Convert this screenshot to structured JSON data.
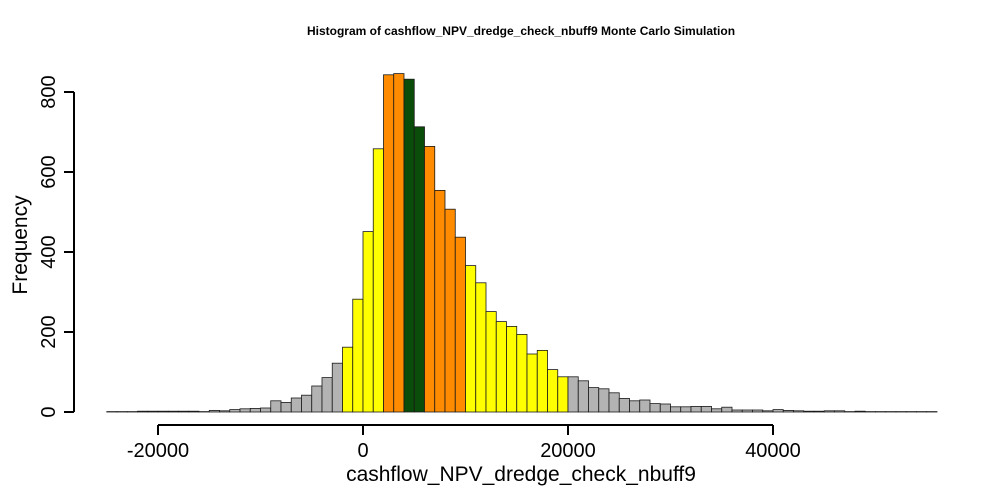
{
  "chart_data": {
    "type": "bar",
    "title": "Histogram of  cashflow_NPV_dredge_check_nbuff9  Monte Carlo Simulation",
    "xlabel": "cashflow_NPV_dredge_check_nbuff9",
    "ylabel": "Frequency",
    "xlim": [
      -25000,
      56000
    ],
    "ylim": [
      0,
      850
    ],
    "bin_width": 1000,
    "x_ticks": [
      -20000,
      0,
      20000,
      40000
    ],
    "x_tick_labels": [
      "-20000",
      "0",
      "20000",
      "40000"
    ],
    "y_ticks": [
      0,
      200,
      400,
      600,
      800
    ],
    "y_tick_labels": [
      "0",
      "200",
      "400",
      "600",
      "800"
    ],
    "grid": false,
    "legend": "none",
    "colors": {
      "outer": "#b3b3b3",
      "middle": "#ffff00",
      "inner": "#ff8c00",
      "core": "#0a4d0a",
      "stroke": "#1a1a1a"
    },
    "bins": [
      {
        "x0": -25000,
        "x1": -24000,
        "count": 1,
        "band": "outer"
      },
      {
        "x0": -24000,
        "x1": -23000,
        "count": 1,
        "band": "outer"
      },
      {
        "x0": -23000,
        "x1": -22000,
        "count": 1,
        "band": "outer"
      },
      {
        "x0": -22000,
        "x1": -21000,
        "count": 2,
        "band": "outer"
      },
      {
        "x0": -21000,
        "x1": -20000,
        "count": 2,
        "band": "outer"
      },
      {
        "x0": -20000,
        "x1": -19000,
        "count": 2,
        "band": "outer"
      },
      {
        "x0": -19000,
        "x1": -18000,
        "count": 2,
        "band": "outer"
      },
      {
        "x0": -18000,
        "x1": -17000,
        "count": 2,
        "band": "outer"
      },
      {
        "x0": -17000,
        "x1": -16000,
        "count": 2,
        "band": "outer"
      },
      {
        "x0": -16000,
        "x1": -15000,
        "count": 1,
        "band": "outer"
      },
      {
        "x0": -15000,
        "x1": -14000,
        "count": 4,
        "band": "outer"
      },
      {
        "x0": -14000,
        "x1": -13000,
        "count": 3,
        "band": "outer"
      },
      {
        "x0": -13000,
        "x1": -12000,
        "count": 6,
        "band": "outer"
      },
      {
        "x0": -12000,
        "x1": -11000,
        "count": 8,
        "band": "outer"
      },
      {
        "x0": -11000,
        "x1": -10000,
        "count": 9,
        "band": "outer"
      },
      {
        "x0": -10000,
        "x1": -9000,
        "count": 10,
        "band": "outer"
      },
      {
        "x0": -9000,
        "x1": -8000,
        "count": 28,
        "band": "outer"
      },
      {
        "x0": -8000,
        "x1": -7000,
        "count": 24,
        "band": "outer"
      },
      {
        "x0": -7000,
        "x1": -6000,
        "count": 35,
        "band": "outer"
      },
      {
        "x0": -6000,
        "x1": -5000,
        "count": 42,
        "band": "outer"
      },
      {
        "x0": -5000,
        "x1": -4000,
        "count": 65,
        "band": "outer"
      },
      {
        "x0": -4000,
        "x1": -3000,
        "count": 86,
        "band": "outer"
      },
      {
        "x0": -3000,
        "x1": -2000,
        "count": 122,
        "band": "outer"
      },
      {
        "x0": -2000,
        "x1": -1000,
        "count": 162,
        "band": "middle"
      },
      {
        "x0": -1000,
        "x1": 0,
        "count": 282,
        "band": "middle"
      },
      {
        "x0": 0,
        "x1": 1000,
        "count": 451,
        "band": "middle"
      },
      {
        "x0": 1000,
        "x1": 2000,
        "count": 658,
        "band": "middle"
      },
      {
        "x0": 2000,
        "x1": 3000,
        "count": 843,
        "band": "inner"
      },
      {
        "x0": 3000,
        "x1": 4000,
        "count": 846,
        "band": "inner"
      },
      {
        "x0": 4000,
        "x1": 5000,
        "count": 832,
        "band": "core"
      },
      {
        "x0": 5000,
        "x1": 6000,
        "count": 713,
        "band": "core"
      },
      {
        "x0": 6000,
        "x1": 7000,
        "count": 664,
        "band": "inner"
      },
      {
        "x0": 7000,
        "x1": 8000,
        "count": 554,
        "band": "inner"
      },
      {
        "x0": 8000,
        "x1": 9000,
        "count": 507,
        "band": "inner"
      },
      {
        "x0": 9000,
        "x1": 10000,
        "count": 437,
        "band": "inner"
      },
      {
        "x0": 10000,
        "x1": 11000,
        "count": 366,
        "band": "middle"
      },
      {
        "x0": 11000,
        "x1": 12000,
        "count": 323,
        "band": "middle"
      },
      {
        "x0": 12000,
        "x1": 13000,
        "count": 251,
        "band": "middle"
      },
      {
        "x0": 13000,
        "x1": 14000,
        "count": 226,
        "band": "middle"
      },
      {
        "x0": 14000,
        "x1": 15000,
        "count": 214,
        "band": "middle"
      },
      {
        "x0": 15000,
        "x1": 16000,
        "count": 194,
        "band": "middle"
      },
      {
        "x0": 16000,
        "x1": 17000,
        "count": 145,
        "band": "middle"
      },
      {
        "x0": 17000,
        "x1": 18000,
        "count": 154,
        "band": "middle"
      },
      {
        "x0": 18000,
        "x1": 19000,
        "count": 106,
        "band": "middle"
      },
      {
        "x0": 19000,
        "x1": 20000,
        "count": 88,
        "band": "middle"
      },
      {
        "x0": 20000,
        "x1": 21000,
        "count": 88,
        "band": "outer"
      },
      {
        "x0": 21000,
        "x1": 22000,
        "count": 78,
        "band": "outer"
      },
      {
        "x0": 22000,
        "x1": 23000,
        "count": 61,
        "band": "outer"
      },
      {
        "x0": 23000,
        "x1": 24000,
        "count": 58,
        "band": "outer"
      },
      {
        "x0": 24000,
        "x1": 25000,
        "count": 48,
        "band": "outer"
      },
      {
        "x0": 25000,
        "x1": 26000,
        "count": 34,
        "band": "outer"
      },
      {
        "x0": 26000,
        "x1": 27000,
        "count": 28,
        "band": "outer"
      },
      {
        "x0": 27000,
        "x1": 28000,
        "count": 30,
        "band": "outer"
      },
      {
        "x0": 28000,
        "x1": 29000,
        "count": 21,
        "band": "outer"
      },
      {
        "x0": 29000,
        "x1": 30000,
        "count": 20,
        "band": "outer"
      },
      {
        "x0": 30000,
        "x1": 31000,
        "count": 13,
        "band": "outer"
      },
      {
        "x0": 31000,
        "x1": 32000,
        "count": 13,
        "band": "outer"
      },
      {
        "x0": 32000,
        "x1": 33000,
        "count": 14,
        "band": "outer"
      },
      {
        "x0": 33000,
        "x1": 34000,
        "count": 14,
        "band": "outer"
      },
      {
        "x0": 34000,
        "x1": 35000,
        "count": 8,
        "band": "outer"
      },
      {
        "x0": 35000,
        "x1": 36000,
        "count": 12,
        "band": "outer"
      },
      {
        "x0": 36000,
        "x1": 37000,
        "count": 5,
        "band": "outer"
      },
      {
        "x0": 37000,
        "x1": 38000,
        "count": 5,
        "band": "outer"
      },
      {
        "x0": 38000,
        "x1": 39000,
        "count": 5,
        "band": "outer"
      },
      {
        "x0": 39000,
        "x1": 40000,
        "count": 3,
        "band": "outer"
      },
      {
        "x0": 40000,
        "x1": 41000,
        "count": 6,
        "band": "outer"
      },
      {
        "x0": 41000,
        "x1": 42000,
        "count": 4,
        "band": "outer"
      },
      {
        "x0": 42000,
        "x1": 43000,
        "count": 3,
        "band": "outer"
      },
      {
        "x0": 43000,
        "x1": 44000,
        "count": 2,
        "band": "outer"
      },
      {
        "x0": 44000,
        "x1": 45000,
        "count": 2,
        "band": "outer"
      },
      {
        "x0": 45000,
        "x1": 46000,
        "count": 3,
        "band": "outer"
      },
      {
        "x0": 46000,
        "x1": 47000,
        "count": 3,
        "band": "outer"
      },
      {
        "x0": 47000,
        "x1": 48000,
        "count": 1,
        "band": "outer"
      },
      {
        "x0": 48000,
        "x1": 49000,
        "count": 2,
        "band": "outer"
      },
      {
        "x0": 49000,
        "x1": 50000,
        "count": 1,
        "band": "outer"
      },
      {
        "x0": 50000,
        "x1": 51000,
        "count": 1,
        "band": "outer"
      },
      {
        "x0": 51000,
        "x1": 52000,
        "count": 1,
        "band": "outer"
      },
      {
        "x0": 52000,
        "x1": 53000,
        "count": 1,
        "band": "outer"
      },
      {
        "x0": 53000,
        "x1": 54000,
        "count": 1,
        "band": "outer"
      },
      {
        "x0": 54000,
        "x1": 55000,
        "count": 1,
        "band": "outer"
      },
      {
        "x0": 55000,
        "x1": 56000,
        "count": 1,
        "band": "outer"
      }
    ]
  }
}
